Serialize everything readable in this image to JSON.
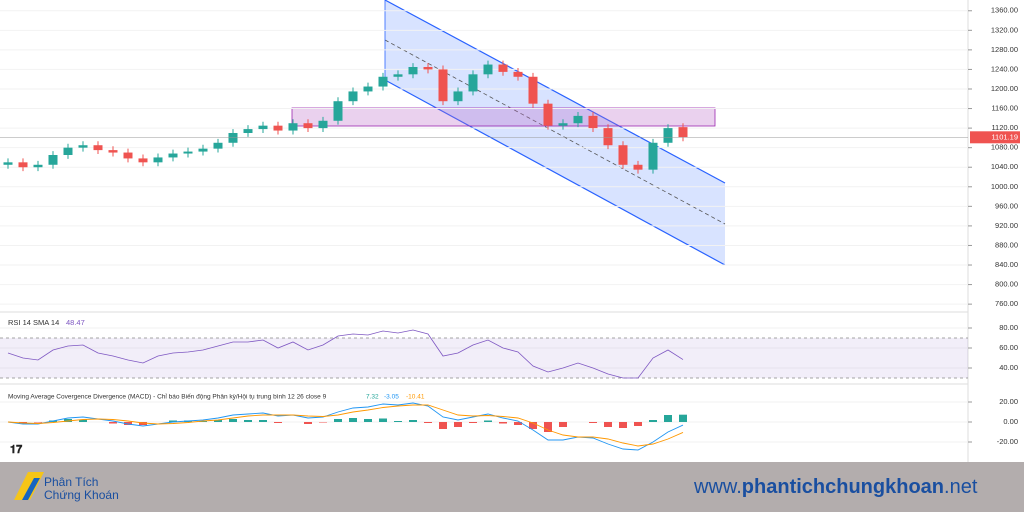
{
  "chart_data": [
    {
      "type": "candlestick",
      "open": [
        1045,
        1050,
        1040,
        1045,
        1065,
        1080,
        1085,
        1075,
        1070,
        1058,
        1050,
        1060,
        1068,
        1072,
        1078,
        1090,
        1110,
        1118,
        1125,
        1115,
        1130,
        1120,
        1135,
        1175,
        1195,
        1205,
        1225,
        1230,
        1245,
        1240,
        1175,
        1195,
        1230,
        1250,
        1235,
        1225,
        1170,
        1125,
        1130,
        1145,
        1120,
        1085,
        1045,
        1035,
        1090,
        1122
      ],
      "high": [
        1058,
        1058,
        1053,
        1073,
        1088,
        1093,
        1093,
        1083,
        1078,
        1066,
        1068,
        1076,
        1080,
        1086,
        1098,
        1118,
        1126,
        1133,
        1133,
        1138,
        1138,
        1143,
        1183,
        1203,
        1213,
        1233,
        1238,
        1253,
        1253,
        1248,
        1203,
        1238,
        1258,
        1258,
        1243,
        1233,
        1178,
        1138,
        1153,
        1153,
        1128,
        1093,
        1053,
        1098,
        1128,
        1130
      ],
      "low": [
        1037,
        1032,
        1032,
        1037,
        1057,
        1072,
        1067,
        1062,
        1050,
        1042,
        1042,
        1052,
        1060,
        1064,
        1070,
        1082,
        1102,
        1110,
        1107,
        1107,
        1112,
        1112,
        1127,
        1167,
        1187,
        1197,
        1217,
        1222,
        1232,
        1167,
        1167,
        1187,
        1222,
        1227,
        1217,
        1162,
        1117,
        1117,
        1122,
        1112,
        1077,
        1037,
        1027,
        1027,
        1082,
        1093
      ],
      "close": [
        1050,
        1040,
        1045,
        1065,
        1080,
        1085,
        1075,
        1070,
        1058,
        1050,
        1060,
        1068,
        1072,
        1078,
        1090,
        1110,
        1118,
        1125,
        1115,
        1130,
        1120,
        1135,
        1175,
        1195,
        1205,
        1225,
        1230,
        1245,
        1240,
        1175,
        1195,
        1230,
        1250,
        1235,
        1225,
        1170,
        1125,
        1130,
        1145,
        1120,
        1085,
        1045,
        1035,
        1090,
        1120,
        1101.19
      ],
      "up_color": "#26a69a",
      "down_color": "#ef5350",
      "ylim": [
        748,
        1382
      ],
      "yticks": [
        {
          "value": 760,
          "label": "760.00"
        },
        {
          "value": 800,
          "label": "800.00"
        },
        {
          "value": 840,
          "label": "840.00"
        },
        {
          "value": 880,
          "label": "880.00"
        },
        {
          "value": 920,
          "label": "920.00"
        },
        {
          "value": 960,
          "label": "960.00"
        },
        {
          "value": 1000,
          "label": "1000.00"
        },
        {
          "value": 1040,
          "label": "1040.00"
        },
        {
          "value": 1080,
          "label": "1080.00"
        },
        {
          "value": 1120,
          "label": "1120.00"
        },
        {
          "value": 1160,
          "label": "1160.00"
        },
        {
          "value": 1200,
          "label": "1200.00"
        },
        {
          "value": 1240,
          "label": "1240.00"
        },
        {
          "value": 1280,
          "label": "1280.00"
        },
        {
          "value": 1320,
          "label": "1320.00"
        },
        {
          "value": 1360,
          "label": "1360.00"
        }
      ]
    },
    {
      "type": "line",
      "title": "RSI 14 SMA 14",
      "series": [
        {
          "color": "#7e57c2",
          "values": [
            55,
            50,
            48,
            58,
            62,
            63,
            55,
            52,
            48,
            45,
            52,
            55,
            56,
            58,
            62,
            66,
            66,
            68,
            60,
            66,
            58,
            63,
            72,
            74,
            73,
            77,
            75,
            78,
            74,
            52,
            55,
            63,
            68,
            60,
            56,
            42,
            36,
            40,
            45,
            40,
            34,
            30,
            30,
            50,
            58,
            48.47
          ]
        }
      ],
      "band": [
        30,
        70
      ],
      "ylim": [
        25,
        93
      ],
      "yticks": [
        {
          "value": 40,
          "label": "40.00"
        },
        {
          "value": 60,
          "label": "60.00"
        },
        {
          "value": 80,
          "label": "80.00"
        }
      ]
    },
    {
      "type": "macd",
      "title": "Moving Average Covergence Divergence (MACD) - Chỉ báo Biến động Phân kỳ/Hội tụ trung bình 12 26 close 9",
      "histogram": {
        "up_color": "#26a69a",
        "down_color": "#ef5350",
        "values": [
          0,
          -1,
          -0.5,
          1.5,
          3,
          2.5,
          0,
          -1.5,
          -3,
          -3,
          0,
          1.5,
          1.5,
          1,
          2,
          3,
          2,
          2,
          -1,
          0,
          -2,
          -0.5,
          3,
          4,
          3,
          3.5,
          1,
          2,
          -1,
          -7,
          -5,
          -1,
          1.5,
          -1.5,
          -3,
          -7,
          -10,
          -5,
          0,
          -1,
          -5,
          -6,
          -4,
          2,
          7,
          7.32
        ]
      },
      "series": [
        {
          "color": "#2196f3",
          "values": [
            0,
            -2,
            -2,
            1,
            4,
            5,
            3,
            1,
            -2,
            -4,
            -2,
            0,
            1,
            2,
            4,
            7,
            8,
            9,
            6,
            7,
            4,
            5,
            10,
            14,
            15,
            18,
            17,
            19,
            16,
            5,
            2,
            5,
            8,
            4,
            1,
            -8,
            -18,
            -18,
            -15,
            -16,
            -22,
            -27,
            -28,
            -20,
            -10,
            -3.05
          ]
        },
        {
          "color": "#ff9800",
          "values": [
            0,
            -1,
            -1.5,
            -0.5,
            1,
            2.5,
            3,
            2.5,
            1,
            -1,
            -2,
            -1.5,
            -0.5,
            1,
            2,
            4,
            6,
            7,
            7,
            7,
            6,
            5.5,
            7,
            10,
            12,
            14.5,
            16,
            17,
            17,
            12,
            7,
            6,
            6.5,
            5.5,
            4,
            -1,
            -8,
            -13,
            -15,
            -15,
            -17,
            -21,
            -24,
            -22,
            -17,
            -10.41
          ]
        }
      ],
      "ylim": [
        -38,
        37
      ],
      "yticks": [
        {
          "value": -20,
          "label": "-20.00"
        },
        {
          "value": 0,
          "label": "0.00"
        },
        {
          "value": 20,
          "label": "20.00"
        }
      ]
    }
  ],
  "footer": {
    "logo_line1": "Phân Tích",
    "logo_line2": "Chứng Khoán",
    "url_prefix": "www.",
    "url_name": "phantichchungkhoan",
    "url_suffix": ".net"
  }
}
